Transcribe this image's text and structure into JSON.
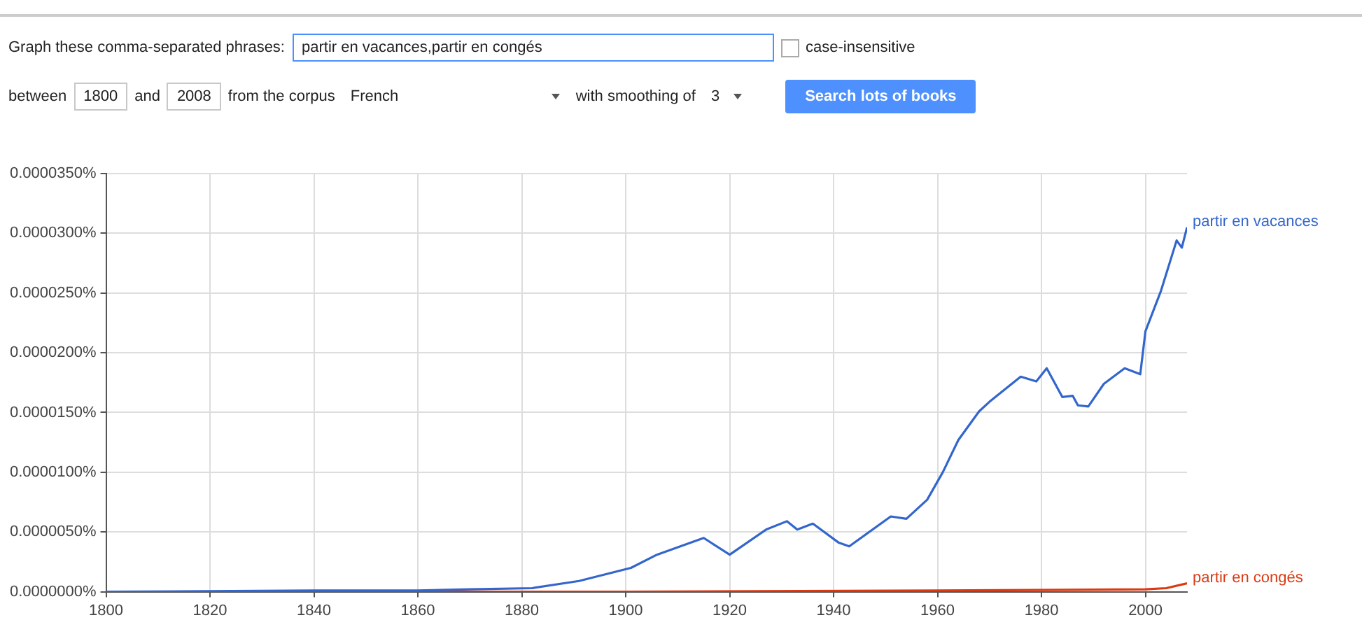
{
  "chart_data": {
    "type": "line",
    "annotations": [
      "Graph these comma-separated phrases:",
      "partir en vacances,partir en congés",
      "case-insensitive",
      "between",
      "1800",
      "and",
      "2008",
      "from the corpus",
      "French",
      "with smoothing of",
      "3",
      "Search lots of books"
    ],
    "xlim": [
      1800,
      2008
    ],
    "xticks": [
      1800,
      1820,
      1840,
      1860,
      1880,
      1900,
      1920,
      1940,
      1960,
      1980,
      2000
    ],
    "ylim": [
      0,
      3.5e-05
    ],
    "yticks": [
      {
        "value": 0,
        "label": "0.0000000%"
      },
      {
        "value": 5e-06,
        "label": "0.0000050%"
      },
      {
        "value": 1e-05,
        "label": "0.0000100%"
      },
      {
        "value": 1.5e-05,
        "label": "0.0000150%"
      },
      {
        "value": 2e-05,
        "label": "0.0000200%"
      },
      {
        "value": 2.5e-05,
        "label": "0.0000250%"
      },
      {
        "value": 3e-05,
        "label": "0.0000300%"
      },
      {
        "value": 3.5e-05,
        "label": "0.0000350%"
      }
    ],
    "grid": true,
    "legend": false,
    "marker": "none",
    "line_style": "solid",
    "series": [
      {
        "name": "partir en vacances",
        "color": "#3366cc",
        "x": [
          1800,
          1840,
          1860,
          1870,
          1882,
          1891,
          1901,
          1906,
          1915,
          1920,
          1927,
          1931,
          1933,
          1936,
          1941,
          1943,
          1951,
          1954,
          1958,
          1961,
          1964,
          1968,
          1970,
          1976,
          1979,
          1981,
          1984,
          1986,
          1987,
          1989,
          1992,
          1996,
          1999,
          2000,
          2003,
          2006,
          2007,
          2008
        ],
        "values": [
          0,
          1e-07,
          1e-07,
          2e-07,
          3e-07,
          9e-07,
          2e-06,
          3.1e-06,
          4.5e-06,
          3.1e-06,
          5.2e-06,
          5.9e-06,
          5.2e-06,
          5.7e-06,
          4.1e-06,
          3.8e-06,
          6.3e-06,
          6.1e-06,
          7.7e-06,
          1e-05,
          1.27e-05,
          1.51e-05,
          1.59e-05,
          1.8e-05,
          1.76e-05,
          1.87e-05,
          1.63e-05,
          1.64e-05,
          1.56e-05,
          1.55e-05,
          1.74e-05,
          1.87e-05,
          1.82e-05,
          2.18e-05,
          2.52e-05,
          2.94e-05,
          2.88e-05,
          3.05e-05
        ]
      },
      {
        "name": "partir en congés",
        "color": "#dc3912",
        "x": [
          1800,
          1900,
          1960,
          2000,
          2004,
          2008
        ],
        "values": [
          0,
          0,
          1e-07,
          2e-07,
          3e-07,
          7e-07
        ]
      }
    ]
  }
}
